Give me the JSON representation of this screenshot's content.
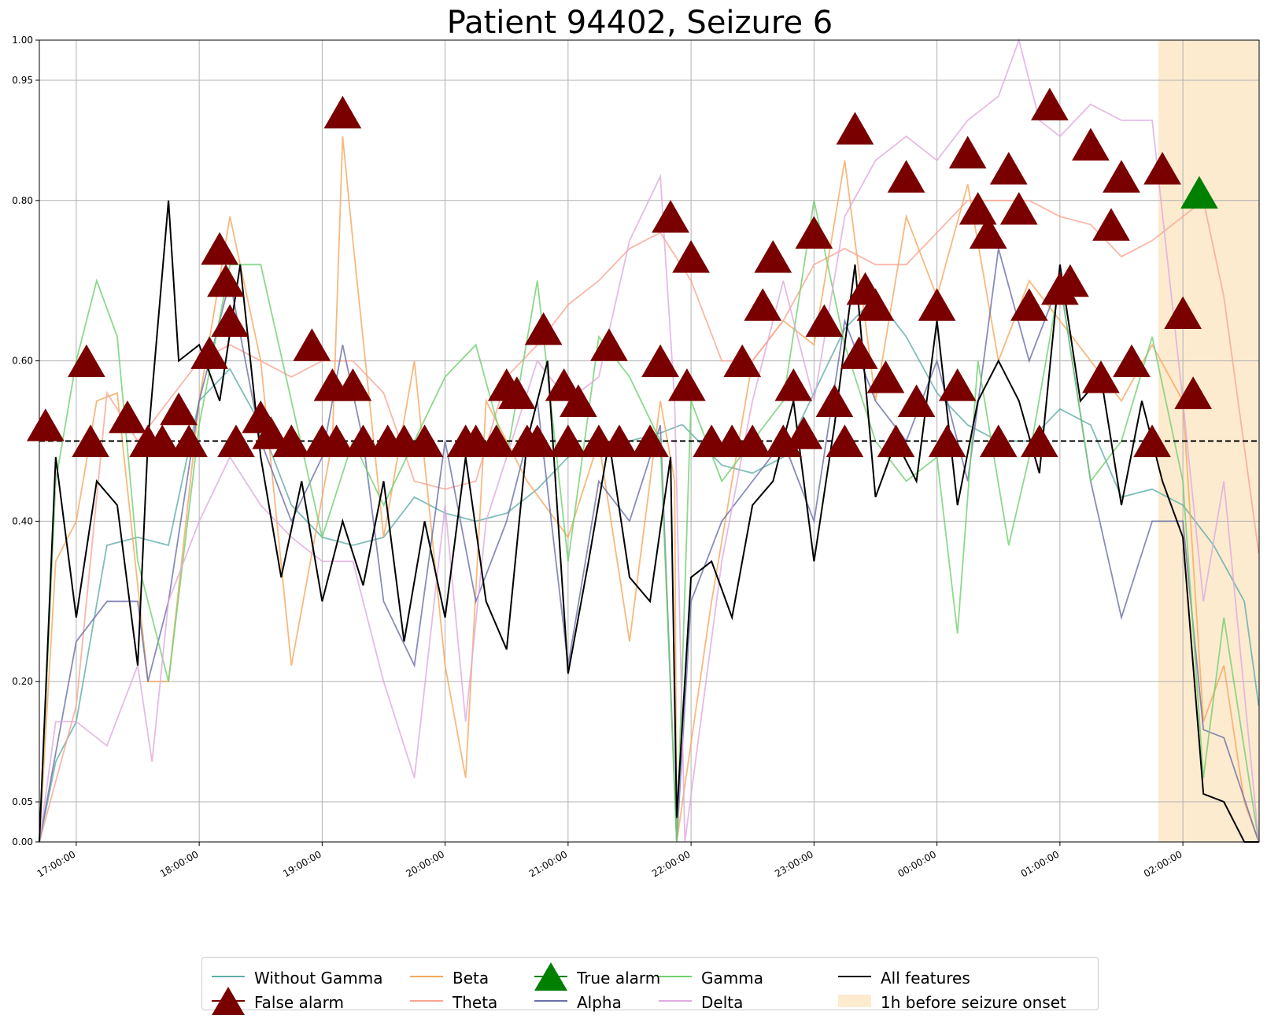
{
  "chart_data": {
    "type": "line",
    "title": "Patient 94402, Seizure 6",
    "xlabel": "",
    "ylabel": "",
    "x_range_hours": [
      16.7,
      26.62
    ],
    "ylim": [
      0,
      1
    ],
    "y_ticks": [
      "0.00",
      "0.05",
      "0.20",
      "0.40",
      "0.60",
      "0.80",
      "0.95",
      "1.00"
    ],
    "y_tick_values": [
      0.0,
      0.05,
      0.2,
      0.4,
      0.6,
      0.8,
      0.95,
      1.0
    ],
    "x_ticks": [
      "17:00:00",
      "18:00:00",
      "19:00:00",
      "20:00:00",
      "21:00:00",
      "22:00:00",
      "23:00:00",
      "00:00:00",
      "01:00:00",
      "02:00:00"
    ],
    "grid": true,
    "threshold": 0.5,
    "shaded_region": {
      "label": "1h before seizure onset",
      "x_start": "01:48:00",
      "x_end": "02:37:00",
      "color": "#fdebd0"
    },
    "legend_position": "bottom",
    "series": [
      {
        "name": "Without Gamma",
        "color": "#5fada7",
        "x": [
          "16:42",
          "16:50",
          "17:00",
          "17:15",
          "17:30",
          "17:45",
          "18:00",
          "18:15",
          "18:30",
          "18:45",
          "19:00",
          "19:15",
          "19:30",
          "19:45",
          "20:00",
          "20:15",
          "20:30",
          "20:45",
          "21:00",
          "21:15",
          "21:30",
          "21:45",
          "21:55",
          "21:56",
          "22:15",
          "22:30",
          "22:45",
          "23:00",
          "23:15",
          "23:30",
          "23:45",
          "00:00",
          "00:15",
          "00:30",
          "00:45",
          "01:00",
          "01:15",
          "01:30",
          "01:45",
          "02:00",
          "02:15",
          "02:30",
          "02:37"
        ],
        "values": [
          0.0,
          0.1,
          0.15,
          0.37,
          0.38,
          0.37,
          0.55,
          0.59,
          0.52,
          0.42,
          0.38,
          0.37,
          0.38,
          0.43,
          0.41,
          0.4,
          0.41,
          0.44,
          0.48,
          0.49,
          0.5,
          0.51,
          0.52,
          0.52,
          0.47,
          0.46,
          0.48,
          0.56,
          0.64,
          0.68,
          0.63,
          0.56,
          0.52,
          0.5,
          0.5,
          0.54,
          0.52,
          0.43,
          0.44,
          0.42,
          0.37,
          0.3,
          0.17
        ]
      },
      {
        "name": "Beta",
        "color": "#f5a85c",
        "x": [
          "16:42",
          "16:50",
          "17:00",
          "17:10",
          "17:20",
          "17:35",
          "17:45",
          "18:00",
          "18:15",
          "18:30",
          "18:45",
          "19:00",
          "19:05",
          "19:10",
          "19:15",
          "19:30",
          "19:45",
          "20:00",
          "20:10",
          "20:20",
          "20:40",
          "21:00",
          "21:15",
          "21:30",
          "21:45",
          "21:52",
          "21:53",
          "22:10",
          "22:30",
          "22:45",
          "23:00",
          "23:15",
          "23:30",
          "23:45",
          "00:00",
          "00:15",
          "00:30",
          "00:45",
          "01:00",
          "01:15",
          "01:30",
          "01:45",
          "02:00",
          "02:10",
          "02:20",
          "02:30",
          "02:37"
        ],
        "values": [
          0.0,
          0.35,
          0.4,
          0.55,
          0.56,
          0.2,
          0.2,
          0.55,
          0.78,
          0.6,
          0.22,
          0.43,
          0.5,
          0.88,
          0.75,
          0.38,
          0.6,
          0.22,
          0.08,
          0.55,
          0.45,
          0.38,
          0.5,
          0.25,
          0.55,
          0.45,
          0.0,
          0.3,
          0.6,
          0.65,
          0.62,
          0.85,
          0.55,
          0.78,
          0.68,
          0.82,
          0.6,
          0.7,
          0.65,
          0.6,
          0.55,
          0.62,
          0.55,
          0.15,
          0.22,
          0.05,
          0.0
        ]
      },
      {
        "name": "Theta",
        "color": "#f7a591",
        "x": [
          "16:42",
          "17:00",
          "17:15",
          "17:30",
          "17:45",
          "18:00",
          "18:15",
          "18:30",
          "18:45",
          "19:00",
          "19:15",
          "19:30",
          "19:45",
          "20:00",
          "20:15",
          "20:30",
          "20:45",
          "21:00",
          "21:15",
          "21:30",
          "21:45",
          "22:00",
          "22:15",
          "22:30",
          "22:45",
          "23:00",
          "23:15",
          "23:30",
          "23:45",
          "00:00",
          "00:15",
          "00:30",
          "00:45",
          "01:00",
          "01:15",
          "01:30",
          "01:45",
          "02:00",
          "02:10",
          "02:20",
          "02:37"
        ],
        "values": [
          0.0,
          0.17,
          0.56,
          0.5,
          0.55,
          0.6,
          0.62,
          0.6,
          0.58,
          0.6,
          0.6,
          0.56,
          0.45,
          0.44,
          0.45,
          0.58,
          0.62,
          0.67,
          0.7,
          0.74,
          0.76,
          0.7,
          0.6,
          0.6,
          0.65,
          0.72,
          0.74,
          0.72,
          0.72,
          0.76,
          0.8,
          0.8,
          0.8,
          0.78,
          0.77,
          0.73,
          0.75,
          0.78,
          0.8,
          0.68,
          0.36
        ]
      },
      {
        "name": "Alpha",
        "color": "#6b6fa8",
        "x": [
          "16:42",
          "17:00",
          "17:15",
          "17:30",
          "17:35",
          "17:45",
          "18:00",
          "18:15",
          "18:30",
          "18:45",
          "19:00",
          "19:10",
          "19:20",
          "19:30",
          "19:45",
          "20:00",
          "20:15",
          "20:30",
          "20:45",
          "21:00",
          "21:15",
          "21:30",
          "21:45",
          "21:53",
          "22:00",
          "22:15",
          "22:30",
          "22:45",
          "23:00",
          "23:15",
          "23:30",
          "23:45",
          "00:00",
          "00:15",
          "00:30",
          "00:45",
          "01:00",
          "01:15",
          "01:30",
          "01:45",
          "02:00",
          "02:10",
          "02:20",
          "02:37"
        ],
        "values": [
          0.0,
          0.25,
          0.3,
          0.3,
          0.2,
          0.3,
          0.55,
          0.7,
          0.5,
          0.4,
          0.48,
          0.62,
          0.5,
          0.3,
          0.22,
          0.5,
          0.3,
          0.4,
          0.55,
          0.22,
          0.45,
          0.4,
          0.52,
          0.0,
          0.3,
          0.4,
          0.45,
          0.5,
          0.4,
          0.65,
          0.55,
          0.5,
          0.6,
          0.45,
          0.74,
          0.6,
          0.7,
          0.45,
          0.28,
          0.4,
          0.4,
          0.14,
          0.13,
          0.0
        ]
      },
      {
        "name": "Gamma",
        "color": "#6fcf6f",
        "x": [
          "16:42",
          "16:50",
          "17:00",
          "17:10",
          "17:20",
          "17:30",
          "17:45",
          "18:00",
          "18:15",
          "18:30",
          "18:45",
          "19:00",
          "19:15",
          "19:30",
          "19:45",
          "20:00",
          "20:15",
          "20:30",
          "20:45",
          "21:00",
          "21:15",
          "21:30",
          "21:45",
          "21:53",
          "22:00",
          "22:15",
          "22:30",
          "22:45",
          "23:00",
          "23:15",
          "23:30",
          "23:45",
          "00:00",
          "00:10",
          "00:20",
          "00:35",
          "00:45",
          "01:00",
          "01:15",
          "01:30",
          "01:45",
          "02:00",
          "02:10",
          "02:20",
          "02:37"
        ],
        "values": [
          0.0,
          0.45,
          0.6,
          0.7,
          0.63,
          0.35,
          0.2,
          0.52,
          0.72,
          0.72,
          0.55,
          0.38,
          0.5,
          0.42,
          0.5,
          0.58,
          0.62,
          0.48,
          0.7,
          0.35,
          0.63,
          0.58,
          0.5,
          0.0,
          0.55,
          0.45,
          0.5,
          0.55,
          0.8,
          0.62,
          0.5,
          0.45,
          0.48,
          0.26,
          0.6,
          0.37,
          0.48,
          0.7,
          0.45,
          0.5,
          0.63,
          0.45,
          0.08,
          0.28,
          0.0
        ]
      },
      {
        "name": "Delta",
        "color": "#dfaadf",
        "x": [
          "16:42",
          "16:50",
          "17:00",
          "17:15",
          "17:30",
          "17:37",
          "17:45",
          "18:00",
          "18:15",
          "18:30",
          "18:45",
          "19:00",
          "19:15",
          "19:30",
          "19:45",
          "20:00",
          "20:10",
          "20:20",
          "20:30",
          "20:45",
          "21:00",
          "21:15",
          "21:30",
          "21:45",
          "21:52",
          "21:57",
          "22:15",
          "22:30",
          "22:45",
          "23:00",
          "23:15",
          "23:30",
          "23:45",
          "00:00",
          "00:15",
          "00:30",
          "00:40",
          "00:50",
          "01:00",
          "01:15",
          "01:30",
          "01:45",
          "02:00",
          "02:10",
          "02:20",
          "02:37"
        ],
        "values": [
          0.0,
          0.15,
          0.15,
          0.12,
          0.22,
          0.1,
          0.3,
          0.4,
          0.48,
          0.42,
          0.38,
          0.35,
          0.35,
          0.2,
          0.08,
          0.42,
          0.15,
          0.4,
          0.48,
          0.6,
          0.55,
          0.58,
          0.75,
          0.83,
          0.55,
          0.0,
          0.35,
          0.55,
          0.7,
          0.55,
          0.78,
          0.85,
          0.88,
          0.85,
          0.9,
          0.93,
          1.0,
          0.9,
          0.88,
          0.92,
          0.9,
          0.9,
          0.55,
          0.3,
          0.45,
          0.0
        ]
      },
      {
        "name": "All features",
        "color": "#000000",
        "x": [
          "16:42",
          "16:50",
          "17:00",
          "17:10",
          "17:20",
          "17:30",
          "17:35",
          "17:45",
          "17:50",
          "18:00",
          "18:10",
          "18:20",
          "18:30",
          "18:40",
          "18:50",
          "19:00",
          "19:10",
          "19:20",
          "19:30",
          "19:40",
          "19:50",
          "20:00",
          "20:10",
          "20:20",
          "20:30",
          "20:40",
          "20:50",
          "21:00",
          "21:10",
          "21:20",
          "21:30",
          "21:40",
          "21:50",
          "21:53",
          "22:00",
          "22:10",
          "22:20",
          "22:30",
          "22:40",
          "22:50",
          "23:00",
          "23:10",
          "23:20",
          "23:30",
          "23:40",
          "23:50",
          "00:00",
          "00:10",
          "00:20",
          "00:30",
          "00:40",
          "00:50",
          "01:00",
          "01:10",
          "01:20",
          "01:30",
          "01:40",
          "01:50",
          "02:00",
          "02:10",
          "02:20",
          "02:30",
          "02:37"
        ],
        "values": [
          0.0,
          0.48,
          0.28,
          0.45,
          0.42,
          0.22,
          0.5,
          0.8,
          0.6,
          0.62,
          0.55,
          0.72,
          0.48,
          0.33,
          0.45,
          0.3,
          0.4,
          0.32,
          0.45,
          0.25,
          0.4,
          0.28,
          0.48,
          0.3,
          0.24,
          0.5,
          0.6,
          0.21,
          0.35,
          0.5,
          0.33,
          0.3,
          0.48,
          0.03,
          0.33,
          0.35,
          0.28,
          0.42,
          0.45,
          0.55,
          0.35,
          0.52,
          0.72,
          0.43,
          0.5,
          0.45,
          0.65,
          0.42,
          0.55,
          0.6,
          0.55,
          0.46,
          0.72,
          0.55,
          0.58,
          0.42,
          0.55,
          0.45,
          0.38,
          0.06,
          0.05,
          0.0,
          0.0
        ]
      }
    ],
    "false_alarms": {
      "name": "False alarm",
      "color": "#7a0000",
      "x": [
        "16:45",
        "17:05",
        "17:07",
        "17:25",
        "17:35",
        "17:42",
        "17:50",
        "17:55",
        "18:05",
        "18:10",
        "18:13",
        "18:15",
        "18:18",
        "18:30",
        "18:35",
        "18:45",
        "18:55",
        "19:00",
        "19:05",
        "19:07",
        "19:10",
        "19:15",
        "19:20",
        "19:32",
        "19:40",
        "19:50",
        "20:10",
        "20:15",
        "20:25",
        "20:30",
        "20:35",
        "20:40",
        "20:45",
        "20:48",
        "20:58",
        "21:00",
        "21:05",
        "21:15",
        "21:20",
        "21:25",
        "21:40",
        "21:45",
        "21:50",
        "21:58",
        "22:00",
        "22:10",
        "22:20",
        "22:25",
        "22:30",
        "22:35",
        "22:40",
        "22:45",
        "22:50",
        "22:55",
        "23:00",
        "23:05",
        "23:10",
        "23:15",
        "23:20",
        "23:22",
        "23:25",
        "23:30",
        "23:35",
        "23:40",
        "23:45",
        "23:50",
        "00:00",
        "00:05",
        "00:10",
        "00:15",
        "00:20",
        "00:25",
        "00:30",
        "00:35",
        "00:40",
        "00:45",
        "00:50",
        "00:55",
        "01:00",
        "01:05",
        "01:15",
        "01:20",
        "01:25",
        "01:30",
        "01:35",
        "01:45",
        "01:50",
        "02:00",
        "02:05"
      ],
      "values": [
        0.52,
        0.6,
        0.5,
        0.53,
        0.5,
        0.5,
        0.54,
        0.5,
        0.61,
        0.74,
        0.7,
        0.65,
        0.5,
        0.53,
        0.51,
        0.5,
        0.62,
        0.5,
        0.57,
        0.5,
        0.91,
        0.57,
        0.5,
        0.5,
        0.5,
        0.5,
        0.5,
        0.5,
        0.5,
        0.57,
        0.56,
        0.5,
        0.5,
        0.64,
        0.57,
        0.5,
        0.55,
        0.5,
        0.62,
        0.5,
        0.5,
        0.6,
        0.78,
        0.57,
        0.73,
        0.5,
        0.5,
        0.6,
        0.5,
        0.67,
        0.73,
        0.5,
        0.57,
        0.51,
        0.76,
        0.65,
        0.55,
        0.5,
        0.89,
        0.61,
        0.69,
        0.67,
        0.58,
        0.5,
        0.83,
        0.55,
        0.67,
        0.5,
        0.57,
        0.86,
        0.79,
        0.76,
        0.5,
        0.84,
        0.79,
        0.67,
        0.5,
        0.92,
        0.69,
        0.7,
        0.87,
        0.58,
        0.77,
        0.83,
        0.6,
        0.5,
        0.84,
        0.66,
        0.56
      ]
    },
    "true_alarms": {
      "name": "True alarm",
      "color": "#008000",
      "x": [
        "02:08"
      ],
      "values": [
        0.81
      ]
    },
    "legend": [
      "Without Gamma",
      "False alarm",
      "Beta",
      "Theta",
      "True alarm",
      "Alpha",
      "Gamma",
      "Delta",
      "All features",
      "1h before seizure onset"
    ]
  }
}
